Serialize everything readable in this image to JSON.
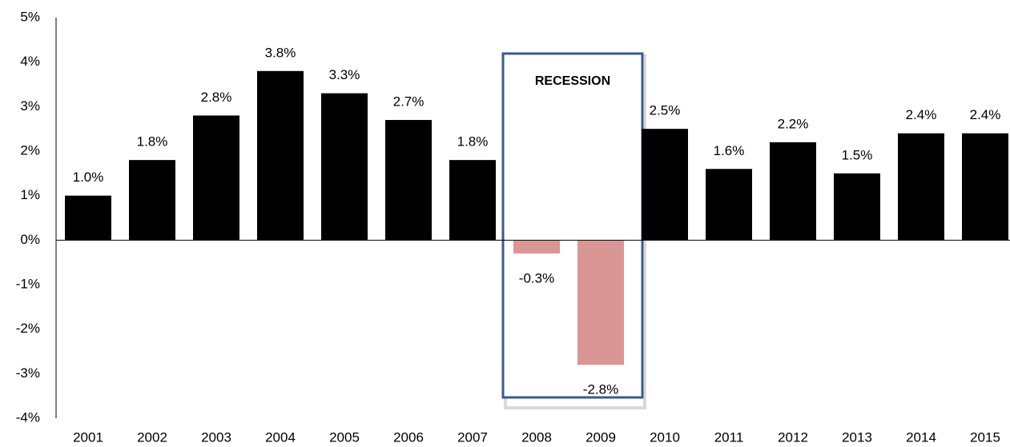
{
  "chart_data": {
    "type": "bar",
    "categories": [
      "2001",
      "2002",
      "2003",
      "2004",
      "2005",
      "2006",
      "2007",
      "2008",
      "2009",
      "2010",
      "2011",
      "2012",
      "2013",
      "2014",
      "2015"
    ],
    "values": [
      1.0,
      1.8,
      2.8,
      3.8,
      3.3,
      2.7,
      1.8,
      -0.3,
      -2.8,
      2.5,
      1.6,
      2.2,
      1.5,
      2.4,
      2.4
    ],
    "value_labels": [
      "1.0%",
      "1.8%",
      "2.8%",
      "3.8%",
      "3.3%",
      "2.7%",
      "1.8%",
      "-0.3%",
      "-2.8%",
      "2.5%",
      "1.6%",
      "2.2%",
      "1.5%",
      "2.4%",
      "2.4%"
    ],
    "colors": [
      "#000000",
      "#000000",
      "#000000",
      "#000000",
      "#000000",
      "#000000",
      "#000000",
      "#d99694",
      "#d99694",
      "#000000",
      "#000000",
      "#000000",
      "#000000",
      "#000000",
      "#000000"
    ],
    "ylim": [
      -4,
      5
    ],
    "yticks": [
      {
        "value": -4,
        "label": "-4%"
      },
      {
        "value": -3,
        "label": "-3%"
      },
      {
        "value": -2,
        "label": "-2%"
      },
      {
        "value": -1,
        "label": "-1%"
      },
      {
        "value": 0,
        "label": "0%"
      },
      {
        "value": 1,
        "label": "1%"
      },
      {
        "value": 2,
        "label": "2%"
      },
      {
        "value": 3,
        "label": "3%"
      },
      {
        "value": 4,
        "label": "4%"
      },
      {
        "value": 5,
        "label": "5%"
      }
    ],
    "grid": false,
    "annotation": {
      "text": "RECESSION",
      "from": "2008",
      "to": "2009"
    }
  }
}
